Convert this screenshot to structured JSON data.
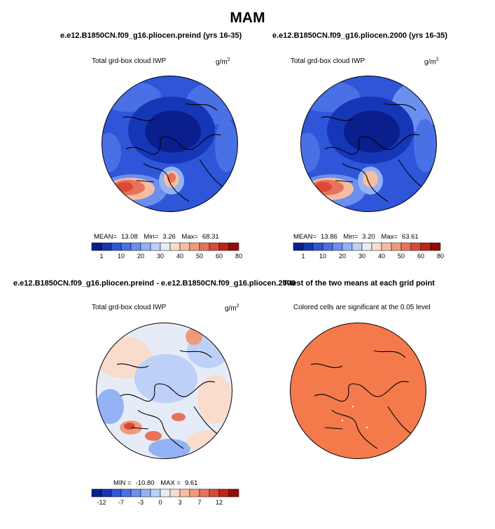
{
  "main_title": "MAM",
  "units": {
    "base": "g/m",
    "exp": "2"
  },
  "panels": [
    {
      "case": "e.e12.B1850CN.f09_g16.pliocen.preind (yrs 16-35)",
      "label": "Total grd-box cloud IWP",
      "stats": {
        "mean_label": "MEAN=",
        "mean": "13.08",
        "min_label": "Min=",
        "min": "3.26",
        "max_label": "Max=",
        "max": "68.31"
      }
    },
    {
      "case": "e.e12.B1850CN.f09_g16.pliocen.2000 (yrs 16-35)",
      "label": "Total grd-box cloud IWP",
      "stats": {
        "mean_label": "MEAN=",
        "mean": "13.86",
        "min_label": "Min=",
        "min": "3.20",
        "max_label": "Max=",
        "max": "63.61"
      }
    },
    {
      "case": "e.e12.B1850CN.f09_g16.pliocen.preind - e.e12.B1850CN.f09_g16.pliocen.2000",
      "label": "Total grd-box cloud IWP",
      "stats": {
        "min_label": "MIN =",
        "min": "-10.80",
        "max_label": "MAX =",
        "max": "9.61"
      }
    },
    {
      "case": "T-test of the two means at each grid point",
      "label": "Colored cells are significant at the 0.05 level"
    }
  ],
  "colorbar_abs": {
    "colors": [
      "#0a1e8c",
      "#1636b8",
      "#2f55d8",
      "#4a70e6",
      "#6b8fef",
      "#93b2f5",
      "#bcd0f8",
      "#e6ecf7",
      "#f9dccb",
      "#f6bda2",
      "#f09a7c",
      "#e8735a",
      "#d94a38",
      "#bf2415",
      "#920d08"
    ],
    "labels": [
      "1",
      "10",
      "20",
      "30",
      "40",
      "50",
      "60",
      "80"
    ]
  },
  "colorbar_diff": {
    "colors": [
      "#0a1e8c",
      "#1636b8",
      "#2f55d8",
      "#4a70e6",
      "#6b8fef",
      "#93b2f5",
      "#bcd0f8",
      "#e6ecf7",
      "#f9dccb",
      "#f6bda2",
      "#f09a7c",
      "#e8735a",
      "#d94a38",
      "#bf2415",
      "#920d08"
    ],
    "labels": [
      "-12",
      "-7",
      "-3",
      "0",
      "3",
      "7",
      "12"
    ]
  },
  "colors": {
    "map_base_abs": "#2f55d8",
    "map_dark_center": "#1636b8",
    "map_base_diff": "#bcd0f8",
    "ttest_fill": "#f47a4c"
  }
}
